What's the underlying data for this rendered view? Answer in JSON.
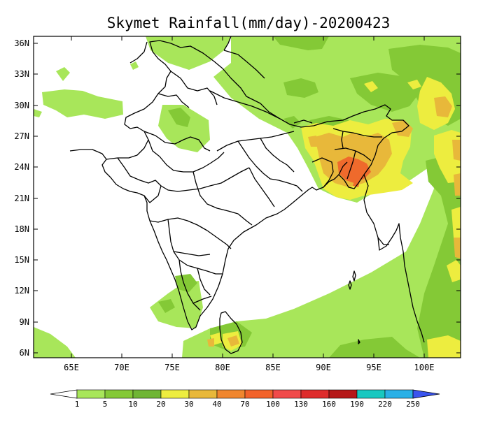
{
  "title": "Skymet Rainfall(mm/day)-20200423",
  "axes": {
    "lon_ticks": [
      "65E",
      "70E",
      "75E",
      "80E",
      "85E",
      "90E",
      "95E",
      "100E"
    ],
    "lat_ticks": [
      "36N",
      "33N",
      "30N",
      "27N",
      "24N",
      "21N",
      "18N",
      "15N",
      "12N",
      "9N",
      "6N"
    ]
  },
  "legend": {
    "labels": [
      "1",
      "5",
      "10",
      "20",
      "30",
      "40",
      "70",
      "100",
      "130",
      "160",
      "190",
      "220",
      "250"
    ],
    "colors": [
      "#a8e65a",
      "#84c936",
      "#6fb534",
      "#eded3f",
      "#e8b83a",
      "#f0862e",
      "#f2622a",
      "#f04a4a",
      "#de2c2c",
      "#b51818",
      "#18c8c0",
      "#2ab0e6",
      "#2a86ee",
      "#3a54ee"
    ]
  },
  "rain_colors": {
    "light_green": "#a8e65a",
    "mid_green": "#84c936",
    "dark_green": "#6fb534",
    "yellow": "#eded3f",
    "orange": "#e8b83a",
    "red_orange": "#ef6a2c"
  }
}
